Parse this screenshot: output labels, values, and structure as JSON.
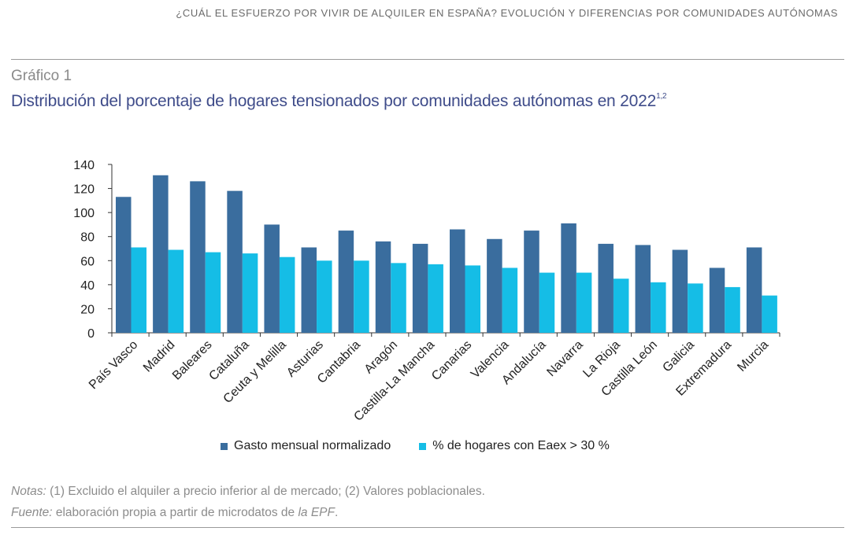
{
  "running_header": "¿CUÁL EL ESFUERZO POR VIVIR DE ALQUILER EN ESPAÑA? EVOLUCIÓN Y DIFERENCIAS POR COMUNIDADES AUTÓNOMAS",
  "kicker": "Gráfico 1",
  "title": "Distribución del porcentaje de hogares tensionados por comunidades autónomas en 2022",
  "title_sup": "1,2",
  "notes": {
    "label": "Notas:",
    "text": " (1) Excluido el alquiler a precio inferior al de mercado; (2) Valores poblacionales."
  },
  "source": {
    "label": "Fuente:",
    "text": " elaboración propia a partir de microdatos de ",
    "italic_text": "la EPF",
    "end": "."
  },
  "chart_data": {
    "type": "bar",
    "categories": [
      "País Vasco",
      "Madrid",
      "Baleares",
      "Cataluña",
      "Ceuta y Melilla",
      "Asturias",
      "Cantabria",
      "Aragón",
      "Castilla-La Mancha",
      "Canarias",
      "Valencia",
      "Andalucía",
      "Navarra",
      "La Rioja",
      "Castilla León",
      "Galicia",
      "Extremadura",
      "Murcia"
    ],
    "series": [
      {
        "name": "Gasto mensual normalizado",
        "color": "#3a6d9e",
        "values": [
          113,
          131,
          126,
          118,
          90,
          71,
          85,
          76,
          74,
          86,
          78,
          85,
          91,
          74,
          73,
          69,
          54,
          71
        ]
      },
      {
        "name": "% de hogares con Eaex > 30 %",
        "color": "#15bde6",
        "values": [
          71,
          69,
          67,
          66,
          63,
          60,
          60,
          58,
          57,
          56,
          54,
          50,
          50,
          45,
          42,
          41,
          38,
          31
        ]
      }
    ],
    "yticks": [
      0,
      20,
      40,
      60,
      80,
      100,
      120,
      140
    ],
    "ylim": [
      0,
      140
    ],
    "grid": false,
    "legend": "bottom"
  }
}
